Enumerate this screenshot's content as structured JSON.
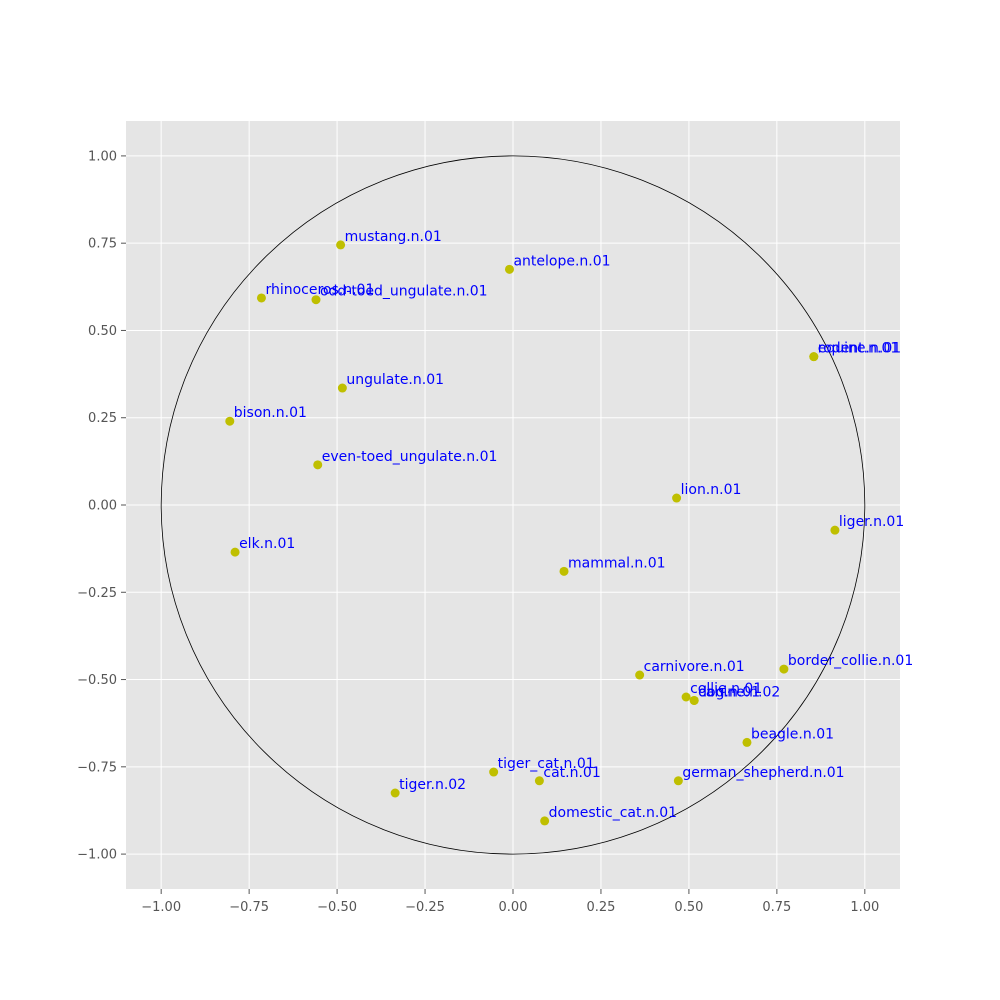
{
  "chart_data": {
    "type": "scatter",
    "title": "",
    "xlabel": "",
    "ylabel": "",
    "xlim": [
      -1.1,
      1.1
    ],
    "ylim": [
      -1.1,
      1.1
    ],
    "xticks": [
      -1.0,
      -0.75,
      -0.5,
      -0.25,
      0.0,
      0.25,
      0.5,
      0.75,
      1.0
    ],
    "yticks": [
      -1.0,
      -0.75,
      -0.5,
      -0.25,
      0.0,
      0.25,
      0.5,
      0.75,
      1.0
    ],
    "xtick_labels": [
      "−1.00",
      "−0.75",
      "−0.50",
      "−0.25",
      "0.00",
      "0.25",
      "0.50",
      "0.75",
      "1.00"
    ],
    "ytick_labels": [
      "−1.00",
      "−0.75",
      "−0.50",
      "−0.25",
      "0.00",
      "0.25",
      "0.50",
      "0.75",
      "1.00"
    ],
    "grid": true,
    "unit_circle": true,
    "marker_color": "#bfbf00",
    "label_color": "#0000ff",
    "background_color": "#e5e5e5",
    "points": [
      {
        "label": "mustang.n.01",
        "x": -0.49,
        "y": 0.745
      },
      {
        "label": "antelope.n.01",
        "x": -0.01,
        "y": 0.675
      },
      {
        "label": "rhinoceros.n.01",
        "x": -0.715,
        "y": 0.593
      },
      {
        "label": "odd-toed_ungulate.n.01",
        "x": -0.56,
        "y": 0.588
      },
      {
        "label": "equine.n.01",
        "x": 0.855,
        "y": 0.425
      },
      {
        "label": "rodent.n.01",
        "x": 0.855,
        "y": 0.425
      },
      {
        "label": "ungulate.n.01",
        "x": -0.485,
        "y": 0.335
      },
      {
        "label": "bison.n.01",
        "x": -0.805,
        "y": 0.24
      },
      {
        "label": "even-toed_ungulate.n.01",
        "x": -0.555,
        "y": 0.115
      },
      {
        "label": "lion.n.01",
        "x": 0.465,
        "y": 0.02
      },
      {
        "label": "liger.n.01",
        "x": 0.915,
        "y": -0.072
      },
      {
        "label": "elk.n.01",
        "x": -0.79,
        "y": -0.135
      },
      {
        "label": "mammal.n.01",
        "x": 0.145,
        "y": -0.19
      },
      {
        "label": "border_collie.n.01",
        "x": 0.77,
        "y": -0.47
      },
      {
        "label": "carnivore.n.01",
        "x": 0.36,
        "y": -0.487
      },
      {
        "label": "collie.n.01",
        "x": 0.492,
        "y": -0.55
      },
      {
        "label": "dog.n.01",
        "x": 0.515,
        "y": -0.56
      },
      {
        "label": "canine.n.02",
        "x": 0.515,
        "y": -0.56
      },
      {
        "label": "beagle.n.01",
        "x": 0.665,
        "y": -0.68
      },
      {
        "label": "tiger_cat.n.01",
        "x": -0.055,
        "y": -0.765
      },
      {
        "label": "cat.n.01",
        "x": 0.075,
        "y": -0.79
      },
      {
        "label": "german_shepherd.n.01",
        "x": 0.47,
        "y": -0.79
      },
      {
        "label": "tiger.n.02",
        "x": -0.335,
        "y": -0.825
      },
      {
        "label": "domestic_cat.n.01",
        "x": 0.09,
        "y": -0.905
      }
    ]
  }
}
